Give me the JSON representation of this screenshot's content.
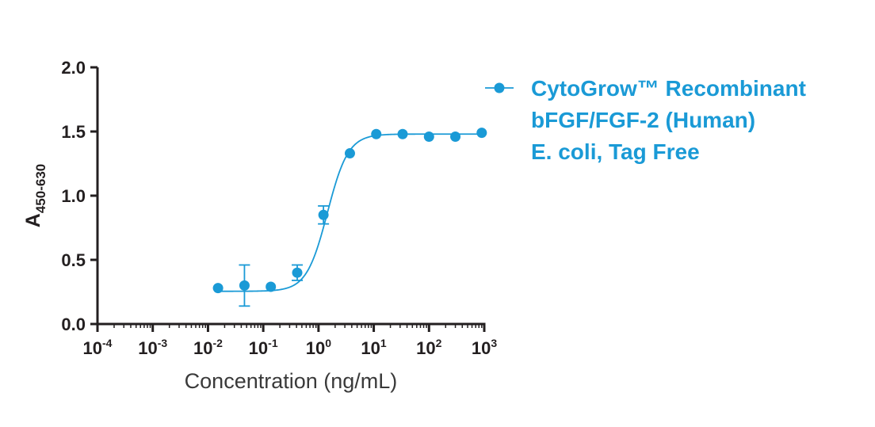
{
  "chart_data": {
    "type": "scatter",
    "xscale": "log",
    "xlabel": "Concentration (ng/mL)",
    "ylabel_main": "A",
    "ylabel_sub": "450-630",
    "xlim": [
      0.0001,
      1000
    ],
    "ylim": [
      0,
      2.0
    ],
    "x_ticks": [
      {
        "value": 0.0001,
        "base": "10",
        "exp": "-4"
      },
      {
        "value": 0.001,
        "base": "10",
        "exp": "-3"
      },
      {
        "value": 0.01,
        "base": "10",
        "exp": "-2"
      },
      {
        "value": 0.1,
        "base": "10",
        "exp": "-1"
      },
      {
        "value": 1,
        "base": "10",
        "exp": "0"
      },
      {
        "value": 10,
        "base": "10",
        "exp": "1"
      },
      {
        "value": 100,
        "base": "10",
        "exp": "2"
      },
      {
        "value": 1000,
        "base": "10",
        "exp": "3"
      }
    ],
    "y_ticks": [
      {
        "value": 0.0,
        "label": "0.0"
      },
      {
        "value": 0.5,
        "label": "0.5"
      },
      {
        "value": 1.0,
        "label": "1.0"
      },
      {
        "value": 1.5,
        "label": "1.5"
      },
      {
        "value": 2.0,
        "label": "2.0"
      }
    ],
    "grid": false,
    "legend_position": "top-right",
    "color": "#1a9ad6",
    "series": [
      {
        "name": "CytoGrow™ Recombinant bFGF/FGF-2 (Human) E. coli, Tag Free",
        "legend_lines": [
          "CytoGrow™ Recombinant",
          "bFGF/FGF-2 (Human)",
          "E. coli, Tag Free"
        ],
        "points": [
          {
            "x": 0.0152,
            "y": 0.28,
            "err": 0.0
          },
          {
            "x": 0.0457,
            "y": 0.3,
            "err": 0.16
          },
          {
            "x": 0.137,
            "y": 0.29,
            "err": 0.0
          },
          {
            "x": 0.412,
            "y": 0.4,
            "err": 0.06
          },
          {
            "x": 1.23,
            "y": 0.85,
            "err": 0.07
          },
          {
            "x": 3.7,
            "y": 1.33,
            "err": 0.0
          },
          {
            "x": 11.1,
            "y": 1.48,
            "err": 0.0
          },
          {
            "x": 33.3,
            "y": 1.48,
            "err": 0.0
          },
          {
            "x": 100,
            "y": 1.46,
            "err": 0.0
          },
          {
            "x": 300,
            "y": 1.46,
            "err": 0.0
          },
          {
            "x": 900,
            "y": 1.49,
            "err": 0.0
          }
        ],
        "fit": {
          "model": "4PL",
          "bottom": 0.255,
          "top": 1.48,
          "ec50": 1.45,
          "hill": 2.3
        }
      }
    ]
  }
}
